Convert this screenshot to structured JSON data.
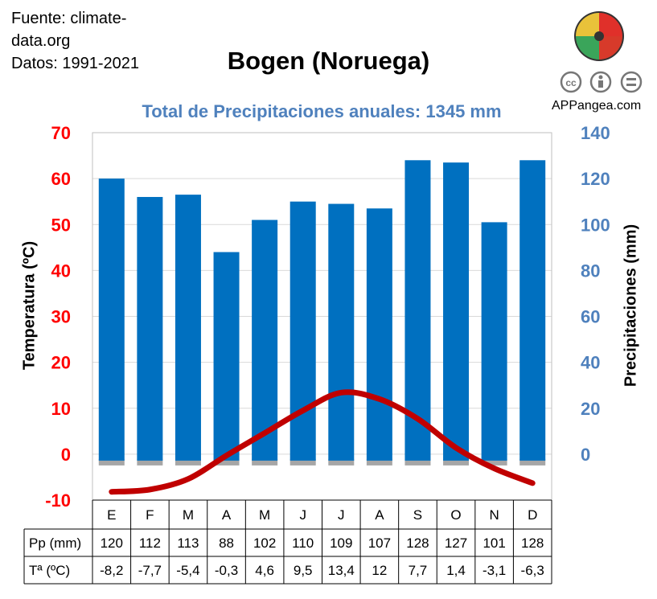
{
  "header": {
    "source_line1": "Fuente: climate-",
    "source_line2": "data.org",
    "period": "Datos: 1991-2021",
    "title": "Bogen (Noruega)",
    "subtitle": "Total de Precipitaciones anuales: 1345 mm",
    "brand": "APPangea.com"
  },
  "license_icons": [
    "cc-icon",
    "by-icon",
    "nd-icon"
  ],
  "colors": {
    "bars": "#0070c0",
    "temperature_line": "#c00000",
    "temperature_axis": "#ff0000",
    "precip_axis": "#4f81bd",
    "subtitle": "#4f81bd"
  },
  "chart_data": {
    "type": "bar",
    "categories": [
      "E",
      "F",
      "M",
      "A",
      "M",
      "J",
      "J",
      "A",
      "S",
      "O",
      "N",
      "D"
    ],
    "series": [
      {
        "type": "bar",
        "axis": "right",
        "values": [
          120,
          112,
          113,
          88,
          102,
          110,
          109,
          107,
          128,
          127,
          101,
          128
        ]
      },
      {
        "type": "line",
        "axis": "left",
        "values": [
          -8.2,
          -7.7,
          -5.4,
          -0.3,
          4.6,
          9.5,
          13.4,
          12,
          7.7,
          1.4,
          -3.1,
          -6.3
        ]
      }
    ],
    "ylabel_left": "Temperatura (ºC)",
    "ylabel_right": "Precipitaciones (mm)",
    "ylim_left": [
      -10,
      70
    ],
    "yticks_left": [
      -10,
      0,
      10,
      20,
      30,
      40,
      50,
      60,
      70
    ],
    "ylim_right": [
      -20,
      140
    ],
    "yticks_right": [
      0,
      20,
      40,
      60,
      80,
      100,
      120,
      140
    ],
    "grid": true
  },
  "table": {
    "precip_label": "Pp (mm)",
    "precip_values": [
      "120",
      "112",
      "113",
      "88",
      "102",
      "110",
      "109",
      "107",
      "128",
      "127",
      "101",
      "128"
    ],
    "temp_label": "Tª (ºC)",
    "temp_values": [
      "-8,2",
      "-7,7",
      "-5,4",
      "-0,3",
      "4,6",
      "9,5",
      "13,4",
      "12",
      "7,7",
      "1,4",
      "-3,1",
      "-6,3"
    ]
  }
}
